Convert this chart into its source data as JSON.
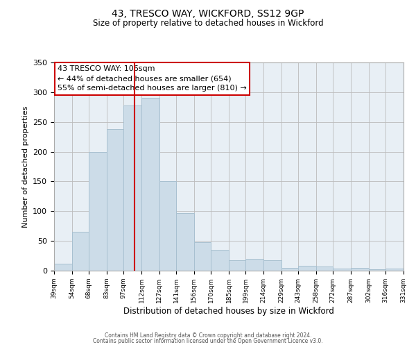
{
  "title": "43, TRESCO WAY, WICKFORD, SS12 9GP",
  "subtitle": "Size of property relative to detached houses in Wickford",
  "xlabel": "Distribution of detached houses by size in Wickford",
  "ylabel": "Number of detached properties",
  "bar_color": "#ccdce8",
  "bar_edge_color": "#a8c0d0",
  "background_color": "#ffffff",
  "axes_bg_color": "#e8eff5",
  "grid_color": "#bbbbbb",
  "vline_x": 106,
  "vline_color": "#cc0000",
  "annotation_title": "43 TRESCO WAY: 106sqm",
  "annotation_line1": "← 44% of detached houses are smaller (654)",
  "annotation_line2": "55% of semi-detached houses are larger (810) →",
  "annotation_box_color": "#ffffff",
  "annotation_border_color": "#cc0000",
  "bins": [
    39,
    54,
    68,
    83,
    97,
    112,
    127,
    141,
    156,
    170,
    185,
    199,
    214,
    229,
    243,
    258,
    272,
    287,
    302,
    316,
    331
  ],
  "counts": [
    12,
    65,
    200,
    238,
    278,
    290,
    150,
    97,
    48,
    35,
    18,
    20,
    18,
    5,
    8,
    7,
    3,
    5,
    2,
    4
  ],
  "ylim": [
    0,
    350
  ],
  "yticks": [
    0,
    50,
    100,
    150,
    200,
    250,
    300,
    350
  ],
  "footer1": "Contains HM Land Registry data © Crown copyright and database right 2024.",
  "footer2": "Contains public sector information licensed under the Open Government Licence v3.0."
}
